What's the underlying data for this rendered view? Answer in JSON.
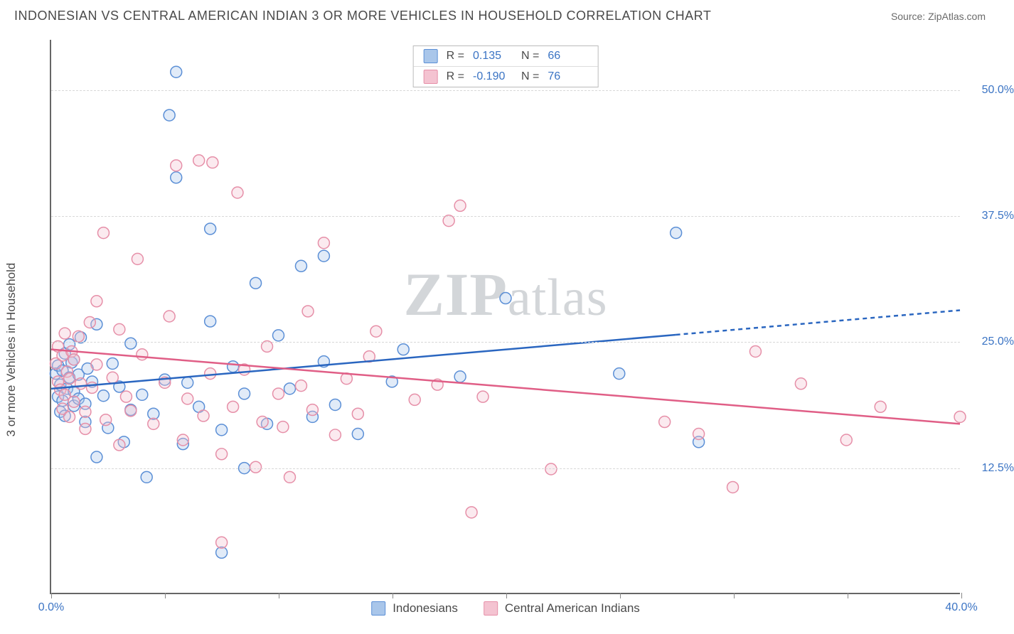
{
  "title": "INDONESIAN VS CENTRAL AMERICAN INDIAN 3 OR MORE VEHICLES IN HOUSEHOLD CORRELATION CHART",
  "source": "Source: ZipAtlas.com",
  "ylabel": "3 or more Vehicles in Household",
  "watermark": "ZIPatlas",
  "chart": {
    "type": "scatter",
    "background_color": "#ffffff",
    "grid_color": "#d8d8d8",
    "axis_color": "#666666",
    "tick_label_color": "#3b74c4",
    "label_font_size": 17,
    "tick_font_size": 16,
    "xlim": [
      0,
      40
    ],
    "ylim": [
      0,
      55
    ],
    "xticks": [
      0,
      5,
      10,
      15,
      20,
      25,
      30,
      35,
      40
    ],
    "xtick_labels": {
      "0": "0.0%",
      "40": "40.0%"
    },
    "yticks": [
      12.5,
      25.0,
      37.5,
      50.0
    ],
    "ytick_labels": [
      "12.5%",
      "25.0%",
      "37.5%",
      "50.0%"
    ],
    "marker_radius": 8,
    "marker_fill_opacity": 0.35,
    "marker_stroke_width": 1.5,
    "trend_line_width": 2.5,
    "series": [
      {
        "name": "Indonesians",
        "color_stroke": "#5b8fd6",
        "color_fill": "#a9c6ea",
        "trend_color": "#2a66c0",
        "R": "0.135",
        "N": "66",
        "trend": {
          "x1": 0,
          "y1": 20.3,
          "x2": 27.5,
          "y2": 25.8,
          "x_dash_from": 27.5,
          "x3": 40,
          "y3": 28.1
        },
        "points": [
          [
            0.2,
            21.8
          ],
          [
            0.3,
            19.5
          ],
          [
            0.3,
            22.6
          ],
          [
            0.4,
            18.0
          ],
          [
            0.4,
            20.7
          ],
          [
            0.5,
            22.1
          ],
          [
            0.5,
            19.1
          ],
          [
            0.6,
            23.8
          ],
          [
            0.6,
            17.6
          ],
          [
            0.7,
            20.3
          ],
          [
            0.8,
            21.4
          ],
          [
            0.8,
            24.7
          ],
          [
            0.9,
            22.9
          ],
          [
            1.0,
            18.6
          ],
          [
            1.0,
            23.2
          ],
          [
            1.0,
            20.0
          ],
          [
            1.2,
            19.3
          ],
          [
            1.2,
            21.7
          ],
          [
            1.3,
            25.4
          ],
          [
            1.5,
            18.8
          ],
          [
            1.5,
            17.0
          ],
          [
            1.6,
            22.3
          ],
          [
            1.8,
            21.0
          ],
          [
            2.0,
            26.7
          ],
          [
            2.0,
            13.5
          ],
          [
            2.3,
            19.6
          ],
          [
            2.5,
            16.4
          ],
          [
            2.7,
            22.8
          ],
          [
            3.0,
            20.5
          ],
          [
            3.2,
            15.0
          ],
          [
            3.5,
            18.2
          ],
          [
            3.5,
            24.8
          ],
          [
            4.0,
            19.7
          ],
          [
            4.2,
            11.5
          ],
          [
            4.5,
            17.8
          ],
          [
            5.0,
            21.2
          ],
          [
            5.2,
            47.5
          ],
          [
            5.5,
            41.3
          ],
          [
            5.5,
            51.8
          ],
          [
            5.8,
            14.8
          ],
          [
            6.0,
            20.9
          ],
          [
            6.5,
            18.5
          ],
          [
            7.0,
            27.0
          ],
          [
            7.0,
            36.2
          ],
          [
            7.5,
            16.2
          ],
          [
            7.5,
            4.0
          ],
          [
            8.0,
            22.5
          ],
          [
            8.5,
            19.8
          ],
          [
            8.5,
            12.4
          ],
          [
            9.0,
            30.8
          ],
          [
            9.5,
            16.8
          ],
          [
            10.0,
            25.6
          ],
          [
            10.5,
            20.3
          ],
          [
            11.0,
            32.5
          ],
          [
            11.5,
            17.5
          ],
          [
            12.0,
            23.0
          ],
          [
            12.0,
            33.5
          ],
          [
            12.5,
            18.7
          ],
          [
            13.5,
            15.8
          ],
          [
            15.0,
            21.0
          ],
          [
            15.5,
            24.2
          ],
          [
            18.0,
            21.5
          ],
          [
            20.0,
            29.3
          ],
          [
            25.0,
            21.8
          ],
          [
            27.5,
            35.8
          ],
          [
            28.5,
            15.0
          ]
        ]
      },
      {
        "name": "Central American Indians",
        "color_stroke": "#e68fa8",
        "color_fill": "#f4c3d1",
        "trend_color": "#e05e86",
        "R": "-0.190",
        "N": "76",
        "trend": {
          "x1": 0,
          "y1": 24.2,
          "x2": 40,
          "y2": 16.8,
          "x_dash_from": 40,
          "x3": 40,
          "y3": 16.8
        },
        "points": [
          [
            0.2,
            22.8
          ],
          [
            0.3,
            24.5
          ],
          [
            0.3,
            21.0
          ],
          [
            0.4,
            20.2
          ],
          [
            0.5,
            18.3
          ],
          [
            0.5,
            23.6
          ],
          [
            0.6,
            25.8
          ],
          [
            0.6,
            19.7
          ],
          [
            0.7,
            22.0
          ],
          [
            0.8,
            21.3
          ],
          [
            0.8,
            17.5
          ],
          [
            0.9,
            24.0
          ],
          [
            1.0,
            19.0
          ],
          [
            1.0,
            23.2
          ],
          [
            1.2,
            25.5
          ],
          [
            1.3,
            20.8
          ],
          [
            1.5,
            18.0
          ],
          [
            1.5,
            16.3
          ],
          [
            1.7,
            26.9
          ],
          [
            1.8,
            20.4
          ],
          [
            2.0,
            22.7
          ],
          [
            2.0,
            29.0
          ],
          [
            2.3,
            35.8
          ],
          [
            2.4,
            17.2
          ],
          [
            2.7,
            21.4
          ],
          [
            3.0,
            26.2
          ],
          [
            3.0,
            14.7
          ],
          [
            3.3,
            19.5
          ],
          [
            3.5,
            18.1
          ],
          [
            3.8,
            33.2
          ],
          [
            4.0,
            23.7
          ],
          [
            4.5,
            16.8
          ],
          [
            5.0,
            20.9
          ],
          [
            5.2,
            27.5
          ],
          [
            5.5,
            42.5
          ],
          [
            5.8,
            15.2
          ],
          [
            6.0,
            19.3
          ],
          [
            6.5,
            43.0
          ],
          [
            6.7,
            17.6
          ],
          [
            7.0,
            21.8
          ],
          [
            7.1,
            42.8
          ],
          [
            7.5,
            13.8
          ],
          [
            7.5,
            5.0
          ],
          [
            8.0,
            18.5
          ],
          [
            8.2,
            39.8
          ],
          [
            8.5,
            22.2
          ],
          [
            9.0,
            12.5
          ],
          [
            9.3,
            17.0
          ],
          [
            9.5,
            24.5
          ],
          [
            10.0,
            19.8
          ],
          [
            10.2,
            16.5
          ],
          [
            10.5,
            11.5
          ],
          [
            11.0,
            20.6
          ],
          [
            11.3,
            28.0
          ],
          [
            11.5,
            18.2
          ],
          [
            12.0,
            34.8
          ],
          [
            12.5,
            15.7
          ],
          [
            13.0,
            21.3
          ],
          [
            13.5,
            17.8
          ],
          [
            14.0,
            23.5
          ],
          [
            14.3,
            26.0
          ],
          [
            16.0,
            19.2
          ],
          [
            17.0,
            20.7
          ],
          [
            17.5,
            37.0
          ],
          [
            18.0,
            38.5
          ],
          [
            18.5,
            8.0
          ],
          [
            19.0,
            19.5
          ],
          [
            22.0,
            12.3
          ],
          [
            27.0,
            17.0
          ],
          [
            28.5,
            15.8
          ],
          [
            30.0,
            10.5
          ],
          [
            31.0,
            24.0
          ],
          [
            33.0,
            20.8
          ],
          [
            35.0,
            15.2
          ],
          [
            36.5,
            18.5
          ],
          [
            40.0,
            17.5
          ]
        ]
      }
    ]
  },
  "legend_top": [
    {
      "swatch_fill": "#a9c6ea",
      "swatch_stroke": "#5b8fd6",
      "R": "0.135",
      "N": "66"
    },
    {
      "swatch_fill": "#f4c3d1",
      "swatch_stroke": "#e68fa8",
      "R": "-0.190",
      "N": "76"
    }
  ],
  "legend_bottom": [
    {
      "label": "Indonesians",
      "swatch_fill": "#a9c6ea",
      "swatch_stroke": "#5b8fd6"
    },
    {
      "label": "Central American Indians",
      "swatch_fill": "#f4c3d1",
      "swatch_stroke": "#e68fa8"
    }
  ]
}
